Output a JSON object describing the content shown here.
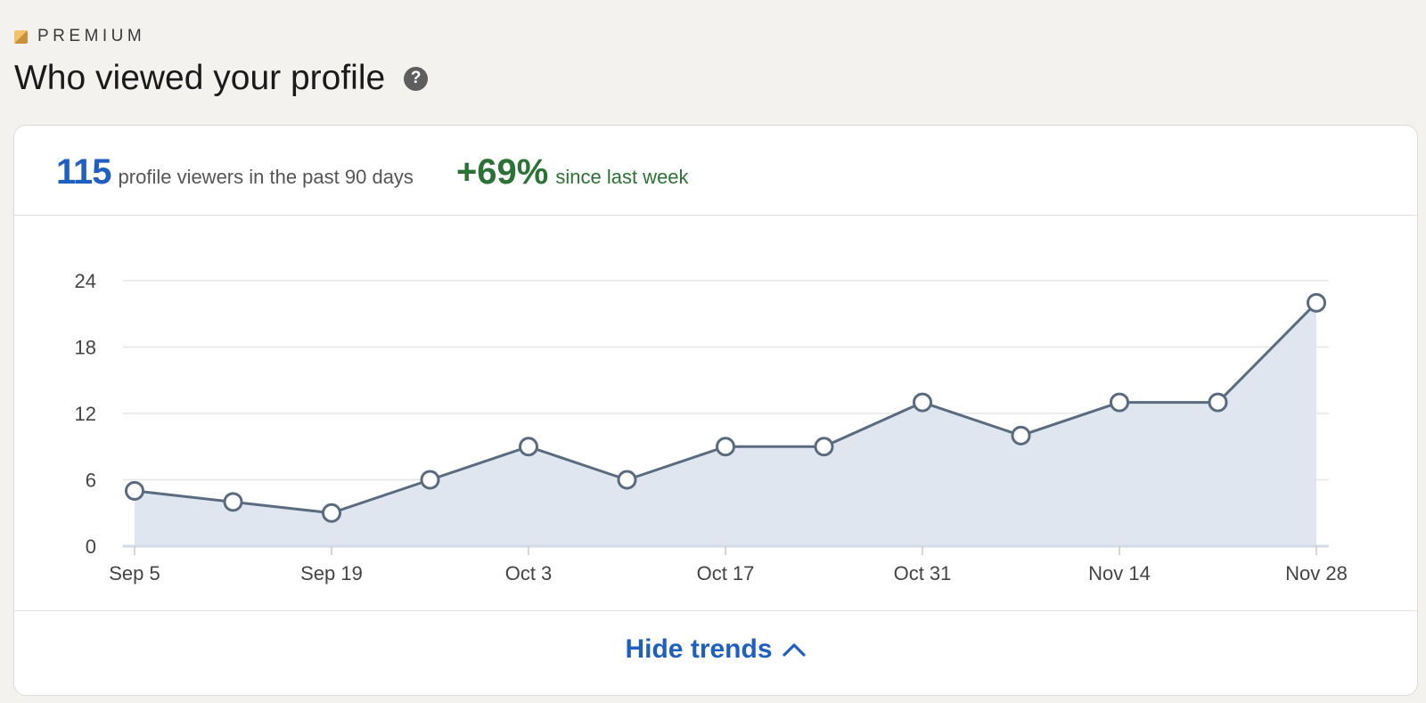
{
  "header": {
    "premium_label": "PREMIUM",
    "title": "Who viewed your profile"
  },
  "stats": {
    "viewer_count": "115",
    "viewer_text": "profile viewers in the past 90 days",
    "change_percent": "+69%",
    "change_text": "since last week"
  },
  "actions": {
    "hide_trends_label": "Hide trends"
  },
  "colors": {
    "accent_blue": "#1f5fc0",
    "positive_green": "#2c7236",
    "line": "#5a6b80",
    "area_fill": "#dfe6ef"
  },
  "chart_data": {
    "type": "area",
    "x": [
      "Sep 5",
      "Sep 12",
      "Sep 19",
      "Sep 26",
      "Oct 3",
      "Oct 10",
      "Oct 17",
      "Oct 24",
      "Oct 31",
      "Nov 7",
      "Nov 14",
      "Nov 21",
      "Nov 28"
    ],
    "values": [
      5,
      4,
      3,
      6,
      9,
      6,
      9,
      9,
      13,
      10,
      13,
      13,
      22
    ],
    "x_tick_labels": [
      "Sep 5",
      "Sep 19",
      "Oct 3",
      "Oct 17",
      "Oct 31",
      "Nov 14",
      "Nov 28"
    ],
    "y_ticks": [
      0,
      6,
      12,
      18,
      24
    ],
    "ylim": [
      0,
      24
    ],
    "grid": true
  }
}
